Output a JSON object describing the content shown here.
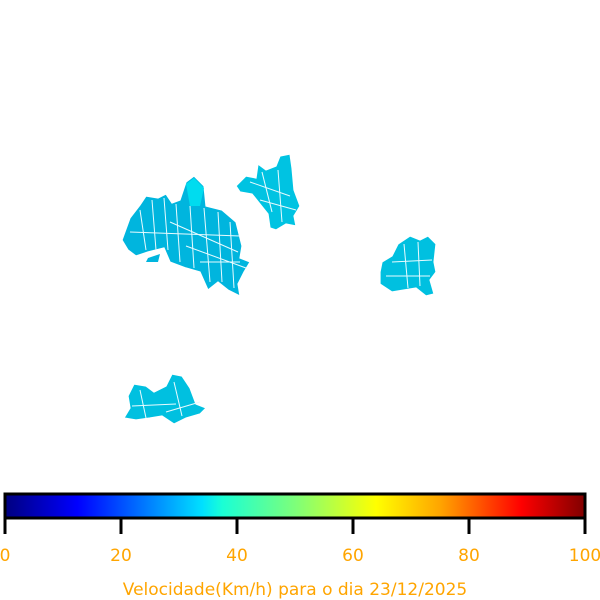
{
  "map": {
    "regions": [
      {
        "id": "region-west",
        "value": 33
      },
      {
        "id": "region-north",
        "value": 33
      },
      {
        "id": "region-east",
        "value": 33
      },
      {
        "id": "region-south",
        "value": 33
      }
    ],
    "region_color": "#00bde0",
    "border_color": "#ffffff"
  },
  "colorbar": {
    "colormap": "jet",
    "min": 0,
    "max": 100,
    "ticks": [
      "0",
      "20",
      "40",
      "60",
      "80",
      "100"
    ],
    "title": "Velocidade(Km/h) para o dia 23/12/2025",
    "label_color": "#ffa500"
  }
}
